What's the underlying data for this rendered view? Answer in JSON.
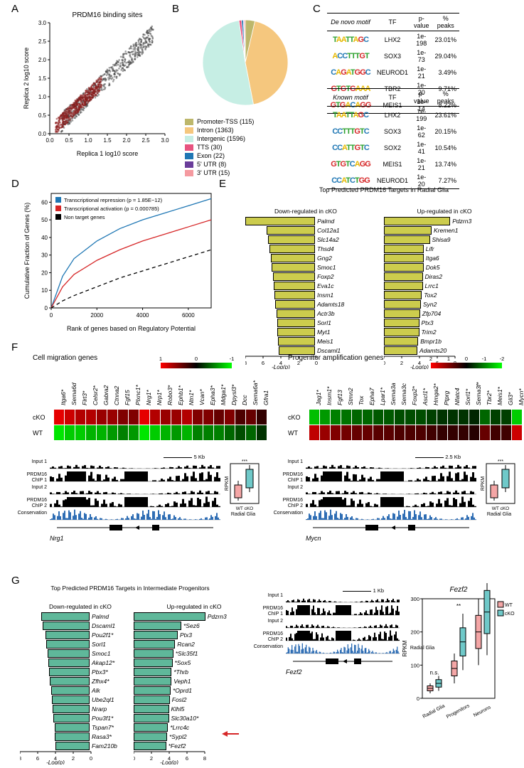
{
  "figure_width": 737,
  "figure_height": 1050,
  "panel_labels": {
    "A": "A",
    "B": "B",
    "C": "C",
    "D": "D",
    "E": "E",
    "F": "F",
    "G": "G"
  },
  "panelA": {
    "title": "PRDM16 binding sites",
    "xlabel": "Replica 1 log10 score",
    "ylabel": "Replica 2 log10 score",
    "xlim": [
      0.0,
      3.0
    ],
    "ylim": [
      0.0,
      3.0
    ],
    "xticks": [
      0.0,
      0.5,
      1.0,
      1.5,
      2.0,
      2.5,
      3.0
    ],
    "yticks": [
      0.0,
      0.5,
      1.0,
      1.5,
      2.0,
      2.5,
      3.0
    ],
    "point_radius": 1.3,
    "colors": {
      "cloud": "#404040",
      "highlight": "#8b1a1a",
      "bg": "#ffffff",
      "axis": "#000000"
    },
    "n_cloud": 600,
    "n_highlight": 500
  },
  "panelB": {
    "type": "pie",
    "slices": [
      {
        "label": "Promoter-TSS (115)",
        "value": 115,
        "color": "#bdb76b"
      },
      {
        "label": "Intron (1363)",
        "value": 1363,
        "color": "#f5c77e"
      },
      {
        "label": "Intergenic (1596)",
        "value": 1596,
        "color": "#c6eee4"
      },
      {
        "label": "TTS (30)",
        "value": 30,
        "color": "#e75480"
      },
      {
        "label": "Exon (22)",
        "value": 22,
        "color": "#1f77b4"
      },
      {
        "label": "5' UTR (8)",
        "value": 8,
        "color": "#6a3d9a"
      },
      {
        "label": "3' UTR (15)",
        "value": 15,
        "color": "#f59aa0"
      }
    ],
    "legend_fontsize": 9
  },
  "panelC": {
    "headers": [
      "_motif_",
      "TF",
      "p-value",
      "% peaks"
    ],
    "tables": [
      {
        "title": "De novo motif",
        "rows": [
          {
            "seq": "TAATTAGC",
            "tf": "LHX2",
            "p": "1e-198",
            "pct": "23.01%"
          },
          {
            "seq": "ACCTTTGT",
            "tf": "SOX3",
            "p": "1e-73",
            "pct": "29.04%"
          },
          {
            "seq": "CAGATGGC",
            "tf": "NEUROD1",
            "p": "1e-21",
            "pct": "3.49%"
          },
          {
            "seq": "GTGTGAAA",
            "tf": "TBR2",
            "p": "1e-20",
            "pct": "9.71%"
          },
          {
            "seq": "GTGACAGG",
            "tf": "MEIS1",
            "p": "1e-14",
            "pct": "8.22%"
          }
        ]
      },
      {
        "title": "Known motif",
        "rows": [
          {
            "seq": "TAATTAGC",
            "tf": "LHX2",
            "p": "1e-199",
            "pct": "23.61%"
          },
          {
            "seq": "CCTTTGTC",
            "tf": "SOX3",
            "p": "1e-62",
            "pct": "20.15%"
          },
          {
            "seq": "CCATTGTC",
            "tf": "SOX2",
            "p": "1e-41",
            "pct": "10.54%"
          },
          {
            "seq": "GTGTCAGG",
            "tf": "MEIS1",
            "p": "1e-21",
            "pct": "13.74%"
          },
          {
            "seq": "CCATCTGG",
            "tf": "NEUROD1",
            "p": "1e-20",
            "pct": "7.27%"
          }
        ]
      }
    ]
  },
  "panelD": {
    "xlabel": "Rank of genes based on Regulatory Potential",
    "ylabel": "Cumulative Fraction of Genes (%)",
    "xlim": [
      0,
      7000
    ],
    "ylim": [
      0,
      65
    ],
    "xticks": [
      0,
      2000,
      4000,
      6000
    ],
    "yticks": [
      0,
      10,
      20,
      30,
      40,
      50,
      60
    ],
    "series": [
      {
        "name": "Transcriptional repression (p = 1.85E−12)",
        "color": "#1f77b4",
        "dash": "0",
        "points": [
          [
            0,
            0
          ],
          [
            500,
            18
          ],
          [
            1000,
            28
          ],
          [
            2000,
            38
          ],
          [
            3000,
            45
          ],
          [
            4000,
            50
          ],
          [
            5000,
            54
          ],
          [
            6000,
            58
          ],
          [
            7000,
            62
          ]
        ]
      },
      {
        "name": "Transcriptional activation (p = 0.000785)",
        "color": "#d62728",
        "dash": "0",
        "points": [
          [
            0,
            0
          ],
          [
            500,
            12
          ],
          [
            1000,
            19
          ],
          [
            2000,
            27
          ],
          [
            3000,
            33
          ],
          [
            4000,
            38
          ],
          [
            5000,
            42
          ],
          [
            6000,
            46
          ],
          [
            7000,
            50
          ]
        ]
      },
      {
        "name": "Non target genes",
        "color": "#000000",
        "dash": "5,4",
        "points": [
          [
            0,
            0
          ],
          [
            500,
            4
          ],
          [
            1000,
            7
          ],
          [
            2000,
            12
          ],
          [
            3000,
            17
          ],
          [
            4000,
            21
          ],
          [
            5000,
            25
          ],
          [
            6000,
            29
          ],
          [
            7000,
            33
          ]
        ]
      }
    ]
  },
  "panelE": {
    "title": "Top Predicted PRDM16 Targets in Radial Glia",
    "bar_color": "#cccc4d",
    "bar_border": "#000000",
    "xlabel": "-Log(p)",
    "xlim": [
      0,
      8
    ],
    "down": {
      "title": "Down-regulated in cKO",
      "items": [
        {
          "g": "Palmd",
          "v": 7.7
        },
        {
          "g": "Col12a1",
          "v": 5.3
        },
        {
          "g": "Slc14a2",
          "v": 5.1
        },
        {
          "g": "Thsd4",
          "v": 5.0
        },
        {
          "g": "Gng2",
          "v": 4.8
        },
        {
          "g": "Smoc1",
          "v": 4.7
        },
        {
          "g": "Foxp2",
          "v": 4.6
        },
        {
          "g": "Eva1c",
          "v": 4.5
        },
        {
          "g": "Insm1",
          "v": 4.4
        },
        {
          "g": "Adamts18",
          "v": 4.3
        },
        {
          "g": "Actr3b",
          "v": 4.2
        },
        {
          "g": "Sorl1",
          "v": 4.1
        },
        {
          "g": "Myt1",
          "v": 4.1
        },
        {
          "g": "Meis1",
          "v": 4.0
        },
        {
          "g": "Dscaml1",
          "v": 3.9
        }
      ]
    },
    "up": {
      "title": "Up-regulated in cKO",
      "items": [
        {
          "g": "Pdzrn3",
          "v": 7.3
        },
        {
          "g": "Kremen1",
          "v": 5.2
        },
        {
          "g": "Shisa9",
          "v": 5.0
        },
        {
          "g": "Lifr",
          "v": 4.3
        },
        {
          "g": "Itga6",
          "v": 4.3
        },
        {
          "g": "Dok5",
          "v": 4.3
        },
        {
          "g": "Diras2",
          "v": 4.2
        },
        {
          "g": "Lrrc1",
          "v": 4.2
        },
        {
          "g": "Tox2",
          "v": 4.1
        },
        {
          "g": "Syn2",
          "v": 4.0
        },
        {
          "g": "Zfp704",
          "v": 3.9
        },
        {
          "g": "Ptx3",
          "v": 3.8
        },
        {
          "g": "Trim2",
          "v": 3.8
        },
        {
          "g": "Bmpr1b",
          "v": 3.7
        },
        {
          "g": "Adamts20",
          "v": 3.6
        }
      ]
    }
  },
  "panelF": {
    "migration": {
      "title": "Cell migration genes",
      "colorbar": {
        "min": -1,
        "max": 1,
        "colors": [
          "#00ff00",
          "#000000",
          "#ff0000"
        ]
      },
      "genes": [
        "Itga6*",
        "Sema6d",
        "Flrt3*",
        "Celsr2*",
        "Gabra2",
        "Ctnna2",
        "Fgf15",
        "Plxnc1*",
        "Nrg1*",
        "Nrp1*",
        "Robo3*",
        "Ephb1*",
        "Ntn1*",
        "Vcan*",
        "Epha3*",
        "Mdga1*",
        "Dpysl3*",
        "Dcc",
        "Sema6a*",
        "Gfra1"
      ],
      "values": {
        "cKO": [
          0.9,
          0.8,
          0.7,
          0.7,
          0.6,
          0.6,
          0.5,
          0.5,
          0.9,
          0.7,
          0.6,
          0.6,
          0.7,
          0.5,
          0.5,
          0.4,
          0.5,
          0.3,
          0.4,
          0.2
        ],
        "WT": [
          -0.9,
          -0.8,
          -0.8,
          -0.7,
          -0.7,
          -0.6,
          -0.5,
          -0.6,
          -0.9,
          -0.8,
          -0.7,
          -0.6,
          -0.7,
          -0.5,
          -0.5,
          -0.5,
          -0.4,
          -0.3,
          -0.4,
          -0.2
        ]
      }
    },
    "progenitor": {
      "title": "Progenitor amplification genes",
      "colorbar": {
        "min": -2,
        "max": 2,
        "colors": [
          "#00ff00",
          "#000000",
          "#ff0000"
        ]
      },
      "genes": [
        "Jag1*",
        "Insm1*",
        "Fgf13",
        "Stmn2",
        "Tox",
        "Epha7",
        "Lpar1*",
        "Sema3a",
        "Sema3c",
        "Foxp2*",
        "Ascl1*",
        "Hmga2*",
        "Ptprg",
        "Nfatc4",
        "Sorl1*",
        "Sema3f*",
        "Tbr2*",
        "Meis1*",
        "Gli3*",
        "Mycn*"
      ],
      "values": {
        "cKO": [
          -1.5,
          -1.2,
          -1.0,
          -0.9,
          -0.8,
          -0.8,
          -0.7,
          -0.7,
          -0.6,
          -0.6,
          -0.6,
          -0.5,
          -0.4,
          -0.4,
          -0.4,
          -0.3,
          -0.8,
          -0.5,
          -0.5,
          -1.6
        ],
        "WT": [
          1.5,
          1.2,
          1.0,
          0.9,
          0.8,
          0.8,
          0.7,
          0.7,
          0.6,
          0.6,
          0.6,
          0.5,
          0.4,
          0.4,
          0.4,
          0.3,
          0.8,
          0.5,
          0.5,
          1.6
        ]
      }
    },
    "tracks": {
      "row_labels": [
        "Input 1",
        "PRDM16\nChIP 1",
        "Input 2",
        "PRDM16\nChIP 2",
        "Conservation"
      ],
      "left": {
        "scale": "5 Kb",
        "gene": "Nrg1",
        "boxplot_gene": "Nrg1",
        "boxplot_ylabel": "RPKM",
        "sig": "***",
        "wt_color": "#f4a6a6",
        "cko_color": "#6fc9c9"
      },
      "right": {
        "scale": "2.5 Kb",
        "gene": "Mycn",
        "boxplot_gene": "Mycn",
        "boxplot_ylabel": "RPKM",
        "sig": "***",
        "wt_color": "#f4a6a6",
        "cko_color": "#6fc9c9"
      }
    }
  },
  "panelG": {
    "title": "Top Predicted PRDM16 Targets in Intermediate Progenitors",
    "bar_color": "#5fb89a",
    "xlabel": "-Log(p)",
    "xlim": [
      0,
      8
    ],
    "down": {
      "title": "Down-regulated in cKO",
      "items": [
        {
          "g": "Palmd",
          "v": 5.3
        },
        {
          "g": "Dscaml1",
          "v": 5.1
        },
        {
          "g": "Pou2f1*",
          "v": 4.8
        },
        {
          "g": "Sorl1",
          "v": 4.7
        },
        {
          "g": "Smoc1",
          "v": 4.6
        },
        {
          "g": "Akap12*",
          "v": 4.5
        },
        {
          "g": "Pbx3*",
          "v": 4.4
        },
        {
          "g": "Zfhx4*",
          "v": 4.3
        },
        {
          "g": "Alk",
          "v": 4.2
        },
        {
          "g": "Ube2ql1",
          "v": 4.1
        },
        {
          "g": "Nrarp",
          "v": 4.0
        },
        {
          "g": "Pou3f1*",
          "v": 3.9
        },
        {
          "g": "Tspan7*",
          "v": 3.8
        },
        {
          "g": "Rasa3*",
          "v": 3.8
        },
        {
          "g": "Fam210b",
          "v": 3.7
        }
      ]
    },
    "up": {
      "title": "Up-regulated in cKO",
      "items": [
        {
          "g": "Pdzrn3",
          "v": 7.9
        },
        {
          "g": "*Sez6",
          "v": 5.2
        },
        {
          "g": "Ptx3",
          "v": 4.8
        },
        {
          "g": "Rcan2",
          "v": 4.5
        },
        {
          "g": "*Slc35f1",
          "v": 4.3
        },
        {
          "g": "*Sox5",
          "v": 4.2
        },
        {
          "g": "*Thrb",
          "v": 4.1
        },
        {
          "g": "Veph1",
          "v": 4.1
        },
        {
          "g": "*Oprd1",
          "v": 4.0
        },
        {
          "g": "Fosl2",
          "v": 3.9
        },
        {
          "g": "Klhl5",
          "v": 3.8
        },
        {
          "g": "Slc30a10*",
          "v": 3.8
        },
        {
          "g": "*Lrrc4c",
          "v": 3.7
        },
        {
          "g": "*Sypl2",
          "v": 3.6
        },
        {
          "g": "*Fezf2",
          "v": 3.5
        }
      ]
    },
    "track": {
      "gene": "Fezf2",
      "scale": "1 Kb",
      "row_labels": [
        "Input 1",
        "PRDM16\nChIP 1",
        "Input 2",
        "PRDM16\nChIP 2",
        "Conservation"
      ]
    },
    "boxplot": {
      "title": "Fezf2",
      "ylabel": "RPKM",
      "ylim": [
        0,
        300
      ],
      "groups": [
        "Radial Glia",
        "Progenitors",
        "Neurons"
      ],
      "wt_color": "#f4a6a6",
      "cko_color": "#6fc9c9",
      "legend": [
        "WT",
        "cKO"
      ],
      "sig": [
        "n.s.",
        "**",
        "*"
      ],
      "sig2": [
        "",
        "n.s.",
        "",
        "",
        ""
      ]
    }
  }
}
